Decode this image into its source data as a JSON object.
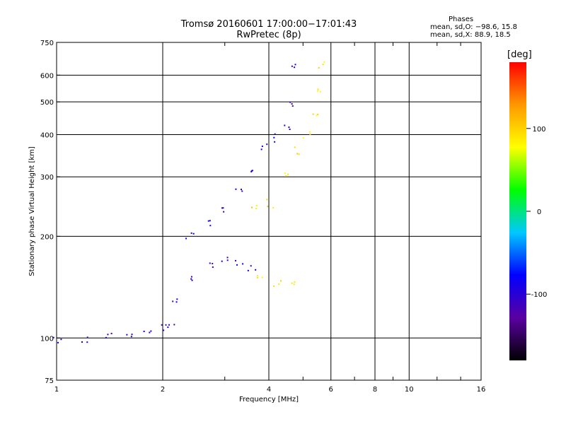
{
  "header": {
    "line1": "Tromsø 20160601 17:00:00−17:01:43",
    "line2": "RwPretec (8p)"
  },
  "stats": {
    "title": "Phases",
    "line_o": "mean, sd,O: −98.6, 15.8",
    "line_x": "mean, sd,X:  88.9, 18.5"
  },
  "chart_data": {
    "type": "scatter",
    "xlabel": "Frequency [MHz]",
    "ylabel": "Stationary phase Virtual Height [km]",
    "x_scale": "log",
    "y_scale": "log",
    "xlim": [
      1,
      16
    ],
    "ylim": [
      75,
      750
    ],
    "x_ticks": [
      1,
      2,
      4,
      6,
      8,
      10,
      16
    ],
    "x_tick_labels": [
      "1",
      "2",
      "4",
      "6",
      "8",
      "10",
      "16"
    ],
    "y_ticks": [
      75,
      100,
      200,
      300,
      400,
      500,
      600,
      750
    ],
    "y_tick_labels": [
      "75",
      "100",
      "200",
      "300",
      "400",
      "500",
      "600",
      "750"
    ],
    "grid": true,
    "color_variable": "phase",
    "colorbar": {
      "title": "[deg]",
      "range": [
        -180,
        180
      ],
      "tick_values": [
        100,
        0,
        -100
      ],
      "tick_labels": [
        "100",
        "0",
        "-100"
      ],
      "colors": [
        "#000000",
        "#5a00a0",
        "#0000ff",
        "#00c8ff",
        "#00ff00",
        "#ffff00",
        "#ff9900",
        "#ff0000"
      ]
    },
    "series": [
      {
        "name": "O",
        "phase": -98.6,
        "trace": [
          {
            "x": 1.0,
            "y": 98
          },
          {
            "x": 1.2,
            "y": 99
          },
          {
            "x": 1.4,
            "y": 101
          },
          {
            "x": 1.6,
            "y": 103
          },
          {
            "x": 1.8,
            "y": 105
          },
          {
            "x": 2.0,
            "y": 108
          },
          {
            "x": 2.1,
            "y": 110
          },
          {
            "x": 2.2,
            "y": 130
          },
          {
            "x": 2.4,
            "y": 150
          },
          {
            "x": 2.7,
            "y": 165
          },
          {
            "x": 3.0,
            "y": 168
          },
          {
            "x": 3.3,
            "y": 165
          },
          {
            "x": 3.6,
            "y": 160
          },
          {
            "x": 2.4,
            "y": 200
          },
          {
            "x": 2.7,
            "y": 220
          },
          {
            "x": 3.0,
            "y": 240
          },
          {
            "x": 3.3,
            "y": 275
          },
          {
            "x": 3.6,
            "y": 320
          },
          {
            "x": 3.9,
            "y": 370
          },
          {
            "x": 4.2,
            "y": 390
          },
          {
            "x": 4.5,
            "y": 420
          },
          {
            "x": 4.6,
            "y": 500
          },
          {
            "x": 4.7,
            "y": 640
          }
        ]
      },
      {
        "name": "X",
        "phase": 88.9,
        "trace": [
          {
            "x": 3.6,
            "y": 245
          },
          {
            "x": 4.0,
            "y": 250
          },
          {
            "x": 4.4,
            "y": 300
          },
          {
            "x": 4.8,
            "y": 360
          },
          {
            "x": 5.1,
            "y": 400
          },
          {
            "x": 5.4,
            "y": 450
          },
          {
            "x": 5.6,
            "y": 550
          },
          {
            "x": 5.7,
            "y": 640
          },
          {
            "x": 3.8,
            "y": 150
          },
          {
            "x": 4.2,
            "y": 145
          },
          {
            "x": 4.6,
            "y": 145
          }
        ]
      }
    ]
  }
}
